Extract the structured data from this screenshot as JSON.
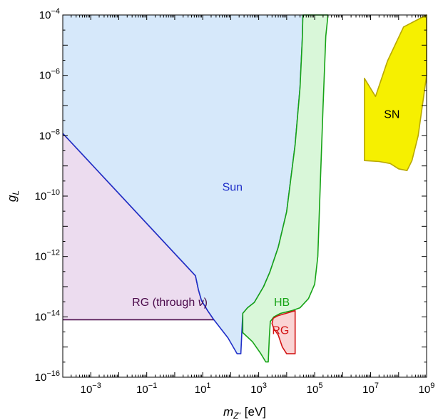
{
  "chart_data": {
    "type": "area",
    "title": "",
    "xlabel": {
      "base": "m",
      "sub": "Z'",
      "unit": "[eV]"
    },
    "ylabel": {
      "base": "g",
      "sub": "L"
    },
    "xscale": "log",
    "yscale": "log",
    "xlim": [
      0.0001,
      1000000000
    ],
    "ylim": [
      1e-16,
      0.0001
    ],
    "x_ticks": [
      {
        "base": "10",
        "exp": "−3",
        "value": 0.001
      },
      {
        "base": "10",
        "exp": "−1",
        "value": 0.1
      },
      {
        "base": "10",
        "exp": "1",
        "value": 10
      },
      {
        "base": "10",
        "exp": "3",
        "value": 1000
      },
      {
        "base": "10",
        "exp": "5",
        "value": 100000
      },
      {
        "base": "10",
        "exp": "7",
        "value": 10000000
      },
      {
        "base": "10",
        "exp": "9",
        "value": 1000000000
      }
    ],
    "y_ticks": [
      {
        "base": "10",
        "exp": "−16",
        "value": 1e-16
      },
      {
        "base": "10",
        "exp": "−14",
        "value": 1e-14
      },
      {
        "base": "10",
        "exp": "−12",
        "value": 1e-12
      },
      {
        "base": "10",
        "exp": "−10",
        "value": 1e-10
      },
      {
        "base": "10",
        "exp": "−8",
        "value": 1e-08
      },
      {
        "base": "10",
        "exp": "−6",
        "value": 1e-06
      },
      {
        "base": "10",
        "exp": "−4",
        "value": 0.0001
      }
    ],
    "grid": false,
    "regions": [
      {
        "name": "RG (through ν)",
        "label_parts": [
          "RG (through ",
          "ν",
          ")"
        ],
        "label_pos": [
          0.03,
          3e-14
        ],
        "label_color": "#4b0a4b",
        "fill": "#ecdcef",
        "stroke": "#4b0a4b",
        "boundary_open": true,
        "boundary": [
          [
            0.0001,
            1.2e-08
          ],
          [
            5.5,
            2.3e-13
          ],
          [
            7,
            8e-14
          ],
          [
            9,
            3.5e-14
          ],
          [
            15,
            1.6e-14
          ],
          [
            25,
            8e-15
          ]
        ],
        "polygon": [
          [
            0.0001,
            1.2e-08
          ],
          [
            5.5,
            2.3e-13
          ],
          [
            7,
            8e-14
          ],
          [
            9,
            3.5e-14
          ],
          [
            15,
            1.6e-14
          ],
          [
            25,
            8e-15
          ],
          [
            0.0001,
            8e-15
          ]
        ],
        "line_segments": [
          [
            [
              0.0001,
              8e-15
            ],
            [
              25,
              8e-15
            ]
          ]
        ]
      },
      {
        "name": "Sun",
        "label_parts": [
          "Sun"
        ],
        "label_pos": [
          50,
          2e-10
        ],
        "label_color": "#1f2ec8",
        "fill": "#d6e8fa",
        "stroke": "#1f2ec8",
        "boundary_open": true,
        "boundary": [
          [
            0.0001,
            1.2e-08
          ],
          [
            5.5,
            2.3e-13
          ],
          [
            7,
            8e-14
          ],
          [
            9,
            3.5e-14
          ],
          [
            15,
            1.6e-14
          ],
          [
            25,
            8e-15
          ],
          [
            80,
            2e-15
          ],
          [
            170,
            6e-16
          ],
          [
            230,
            6e-16
          ],
          [
            250,
            3e-15
          ],
          [
            270,
            1.3e-14
          ],
          [
            400,
            2e-14
          ],
          [
            700,
            3e-14
          ],
          [
            1500,
            1e-13
          ],
          [
            2500,
            3e-13
          ],
          [
            5000,
            2e-12
          ],
          [
            10000,
            3e-11
          ],
          [
            20000,
            5e-09
          ],
          [
            30000,
            4e-07
          ],
          [
            36000,
            1.5e-05
          ],
          [
            38000,
            0.0001
          ]
        ],
        "polygon": [
          [
            0.0001,
            0.0001
          ],
          [
            0.0001,
            1.2e-08
          ],
          [
            5.5,
            2.3e-13
          ],
          [
            7,
            8e-14
          ],
          [
            9,
            3.5e-14
          ],
          [
            15,
            1.6e-14
          ],
          [
            25,
            8e-15
          ],
          [
            80,
            2e-15
          ],
          [
            170,
            6e-16
          ],
          [
            230,
            6e-16
          ],
          [
            250,
            3e-15
          ],
          [
            270,
            1.3e-14
          ],
          [
            400,
            2e-14
          ],
          [
            700,
            3e-14
          ],
          [
            1500,
            1e-13
          ],
          [
            2500,
            3e-13
          ],
          [
            5000,
            2e-12
          ],
          [
            10000,
            3e-11
          ],
          [
            20000,
            5e-09
          ],
          [
            30000,
            4e-07
          ],
          [
            36000,
            1.5e-05
          ],
          [
            38000,
            0.0001
          ]
        ]
      },
      {
        "name": "HB",
        "label_parts": [
          "HB"
        ],
        "label_pos": [
          3500,
          3e-14
        ],
        "label_color": "#16a316",
        "fill": "#d9f7d9",
        "stroke": "#16a316",
        "boundary_open": false,
        "boundary": [
          [
            270,
            3e-15
          ],
          [
            600,
            1.5e-15
          ],
          [
            1200,
            6e-16
          ],
          [
            1800,
            3.2e-16
          ],
          [
            2200,
            3.2e-16
          ],
          [
            2400,
            2e-15
          ],
          [
            2600,
            7e-15
          ],
          [
            3500,
            1e-14
          ],
          [
            6000,
            1.3e-14
          ],
          [
            15000,
            1.6e-14
          ],
          [
            30000,
            2e-14
          ],
          [
            60000,
            4e-14
          ],
          [
            100000,
            1.2e-13
          ],
          [
            130000,
            1e-12
          ],
          [
            160000,
            3e-10
          ],
          [
            200000,
            1e-07
          ],
          [
            250000,
            2e-05
          ],
          [
            300000,
            0.0001
          ],
          [
            38000,
            0.0001
          ],
          [
            36000,
            1.5e-05
          ],
          [
            30000,
            4e-07
          ],
          [
            20000,
            5e-09
          ],
          [
            10000,
            3e-11
          ],
          [
            5000,
            2e-12
          ],
          [
            2500,
            3e-13
          ],
          [
            1500,
            1e-13
          ],
          [
            700,
            3e-14
          ],
          [
            400,
            2e-14
          ],
          [
            270,
            1.3e-14
          ]
        ],
        "polygon": [
          [
            270,
            3e-15
          ],
          [
            600,
            1.5e-15
          ],
          [
            1200,
            6e-16
          ],
          [
            1800,
            3.2e-16
          ],
          [
            2200,
            3.2e-16
          ],
          [
            2400,
            2e-15
          ],
          [
            2600,
            7e-15
          ],
          [
            3500,
            1e-14
          ],
          [
            6000,
            1.3e-14
          ],
          [
            15000,
            1.6e-14
          ],
          [
            30000,
            2e-14
          ],
          [
            60000,
            4e-14
          ],
          [
            100000,
            1.2e-13
          ],
          [
            130000,
            1e-12
          ],
          [
            160000,
            3e-10
          ],
          [
            200000,
            1e-07
          ],
          [
            250000,
            2e-05
          ],
          [
            300000,
            0.0001
          ],
          [
            38000,
            0.0001
          ],
          [
            36000,
            1.5e-05
          ],
          [
            30000,
            4e-07
          ],
          [
            20000,
            5e-09
          ],
          [
            10000,
            3e-11
          ],
          [
            5000,
            2e-12
          ],
          [
            2500,
            3e-13
          ],
          [
            1500,
            1e-13
          ],
          [
            700,
            3e-14
          ],
          [
            400,
            2e-14
          ],
          [
            270,
            1.3e-14
          ]
        ]
      },
      {
        "name": "RG",
        "label_parts": [
          "RG"
        ],
        "label_pos": [
          3000,
          3.5e-15
        ],
        "label_color": "#d21414",
        "fill": "#fad4d4",
        "stroke": "#d21414",
        "boundary_open": false,
        "boundary": [
          [
            3000,
            6e-15
          ],
          [
            3300,
            9e-15
          ],
          [
            5000,
            1.1e-14
          ],
          [
            20000,
            1.6e-14
          ],
          [
            20000,
            6e-16
          ],
          [
            10000,
            6e-16
          ],
          [
            7000,
            1e-15
          ],
          [
            5000,
            2.5e-15
          ],
          [
            3500,
            4e-15
          ]
        ],
        "polygon": [
          [
            3000,
            6e-15
          ],
          [
            3300,
            9e-15
          ],
          [
            5000,
            1.1e-14
          ],
          [
            20000,
            1.6e-14
          ],
          [
            20000,
            6e-16
          ],
          [
            10000,
            6e-16
          ],
          [
            7000,
            1e-15
          ],
          [
            5000,
            2.5e-15
          ],
          [
            3500,
            4e-15
          ]
        ]
      },
      {
        "name": "SN",
        "label_parts": [
          "SN"
        ],
        "label_pos": [
          30000000,
          5e-08
        ],
        "label_color": "#000000",
        "fill": "#f6f000",
        "stroke": "#b8a800",
        "boundary_open": false,
        "boundary": [
          [
            6000000,
            1.5e-09
          ],
          [
            6000000,
            8e-07
          ],
          [
            15000000,
            2e-07
          ],
          [
            40000000,
            3e-06
          ],
          [
            150000000,
            4e-05
          ],
          [
            1000000000,
            0.0001
          ],
          [
            1000000000,
            1e-06
          ],
          [
            500000000,
            1e-08
          ],
          [
            300000000,
            1.5e-09
          ],
          [
            200000000,
            7e-10
          ],
          [
            100000000,
            8e-10
          ],
          [
            50000000,
            1.2e-09
          ],
          [
            20000000,
            1.4e-09
          ]
        ],
        "polygon": [
          [
            6000000,
            1.5e-09
          ],
          [
            6000000,
            8e-07
          ],
          [
            15000000,
            2e-07
          ],
          [
            40000000,
            3e-06
          ],
          [
            150000000,
            4e-05
          ],
          [
            1000000000,
            0.0001
          ],
          [
            1000000000,
            1e-06
          ],
          [
            500000000,
            1e-08
          ],
          [
            300000000,
            1.5e-09
          ],
          [
            200000000,
            7e-10
          ],
          [
            100000000,
            8e-10
          ],
          [
            50000000,
            1.2e-09
          ],
          [
            20000000,
            1.4e-09
          ]
        ]
      }
    ]
  }
}
